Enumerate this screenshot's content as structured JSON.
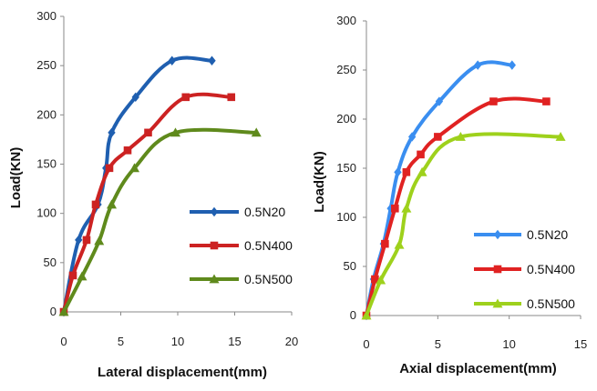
{
  "chart_data": [
    {
      "type": "line",
      "xlabel": "Lateral displacement(mm)",
      "ylabel": "Load(KN)",
      "xlim": [
        0,
        20
      ],
      "ylim": [
        0,
        300
      ],
      "xticks": [
        "0",
        "5",
        "10",
        "15",
        "20"
      ],
      "yticks": [
        "0",
        "50",
        "100",
        "150",
        "200",
        "250",
        "300"
      ],
      "grid": false,
      "legend_position": "right-middle",
      "series": [
        {
          "name": "0.5N20",
          "color": "#1f5fb0",
          "marker": "diamond",
          "x": [
            0,
            1.3,
            3.0,
            3.7,
            4.2,
            6.3,
            9.5,
            13.0
          ],
          "y": [
            0,
            73,
            109,
            146,
            182,
            218,
            255,
            255
          ]
        },
        {
          "name": "0.5N400",
          "color": "#cc2222",
          "marker": "square",
          "x": [
            0,
            0.8,
            2.0,
            2.8,
            4.0,
            5.6,
            7.4,
            10.7,
            14.7
          ],
          "y": [
            0,
            37,
            73,
            109,
            146,
            164,
            182,
            218,
            218
          ]
        },
        {
          "name": "0.5N500",
          "color": "#5f8a1c",
          "marker": "triangle",
          "x": [
            0,
            1.6,
            3.1,
            4.2,
            6.2,
            9.8,
            16.9
          ],
          "y": [
            0,
            36,
            72,
            109,
            146,
            182,
            182
          ]
        }
      ]
    },
    {
      "type": "line",
      "xlabel": "Axial displacement(mm)",
      "ylabel": "Load(KN)",
      "xlim": [
        0,
        15
      ],
      "ylim": [
        0,
        300
      ],
      "xticks": [
        "0",
        "5",
        "10",
        "15"
      ],
      "yticks": [
        "0",
        "50",
        "100",
        "150",
        "200",
        "250",
        "300"
      ],
      "grid": false,
      "legend_position": "right-middle",
      "series": [
        {
          "name": "0.5N20",
          "color": "#3a8ef0",
          "marker": "diamond",
          "x": [
            0,
            0.5,
            1.2,
            1.7,
            2.2,
            3.2,
            5.1,
            7.8,
            10.2
          ],
          "y": [
            0,
            37,
            73,
            109,
            146,
            182,
            218,
            255,
            255
          ]
        },
        {
          "name": "0.5N400",
          "color": "#e02222",
          "marker": "square",
          "x": [
            0,
            0.6,
            1.3,
            2.0,
            2.8,
            3.8,
            5.0,
            8.9,
            12.6
          ],
          "y": [
            0,
            37,
            73,
            109,
            146,
            164,
            182,
            218,
            218
          ]
        },
        {
          "name": "0.5N500",
          "color": "#9ed11c",
          "marker": "triangle",
          "x": [
            0,
            1.0,
            2.3,
            2.8,
            3.9,
            6.6,
            13.6
          ],
          "y": [
            0,
            36,
            72,
            109,
            146,
            182,
            182
          ]
        }
      ]
    }
  ]
}
